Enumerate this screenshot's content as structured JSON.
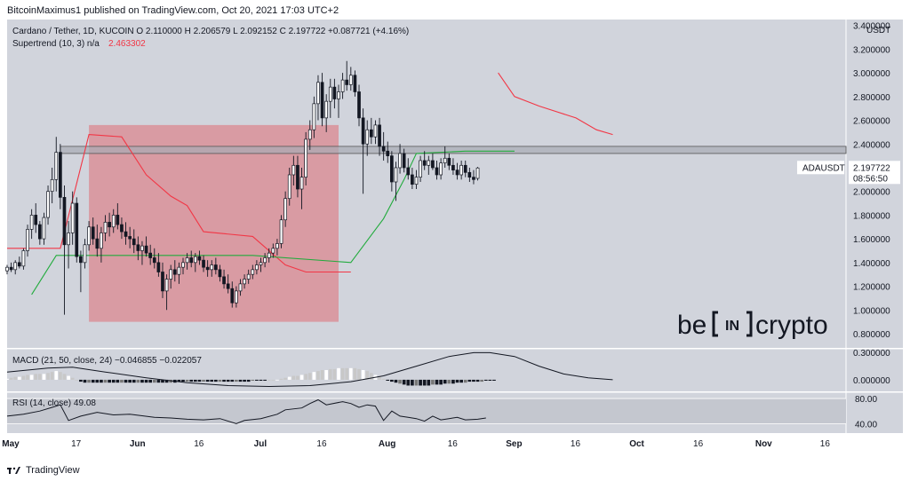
{
  "header": "BitcoinMaximus1 published on TradingView.com, Oct 20, 2021 17:03 UTC+2",
  "footer": {
    "brand": "TradingView"
  },
  "watermark": {
    "brand": "be[IN]crypto",
    "part_be": "be",
    "part_in": "IN",
    "part_crypto": "crypto"
  },
  "colors": {
    "panel_bg": "#d1d4dc",
    "bull": "#ffffff",
    "bear": "#131722",
    "supertrend_down": "#f23645",
    "supertrend_up": "#22ab3d",
    "highlight": "#e06b75",
    "resistance": "#a8abb3"
  },
  "chart_data": {
    "type": "candlestick",
    "symbol_line": "Cardano / Tether, 1D, KUCOIN",
    "ohlc": {
      "open": "O 2.110000",
      "high": "H 2.206579",
      "low": "L 2.092152",
      "close": "C 2.197722",
      "change": "+0.087721 (+4.16%)"
    },
    "indicator_line": "Supertrend (10, 3)",
    "indicator_na": "n/a",
    "indicator_value": "2.463302",
    "price_label": "ADAUSDT",
    "last_price": "2.197722",
    "countdown": "08:56:50",
    "y_unit": "USDT",
    "y_ticks": [
      "3.400000",
      "3.200000",
      "3.000000",
      "2.800000",
      "2.600000",
      "2.400000",
      "2.200000",
      "2.000000",
      "1.800000",
      "1.600000",
      "1.400000",
      "1.200000",
      "1.000000",
      "0.800000"
    ],
    "y_tick_values": [
      3.4,
      3.2,
      3.0,
      2.8,
      2.6,
      2.4,
      2.2,
      2.0,
      1.8,
      1.6,
      1.4,
      1.2,
      1.0,
      0.8
    ],
    "ylim": [
      0.68,
      3.45
    ],
    "x_ticks": [
      "May",
      "17",
      "Jun",
      "16",
      "Jul",
      "16",
      "Aug",
      "16",
      "Sep",
      "16",
      "Oct",
      "16",
      "Nov",
      "16"
    ],
    "x_tick_days": [
      0,
      16,
      31,
      46,
      61,
      76,
      92,
      108,
      123,
      138,
      153,
      168,
      184,
      199
    ],
    "xlim": [
      0,
      205
    ],
    "candles": {
      "start_day": 0,
      "ohlc": [
        [
          1.33,
          1.38,
          1.3,
          1.36
        ],
        [
          1.36,
          1.4,
          1.32,
          1.34
        ],
        [
          1.34,
          1.42,
          1.3,
          1.4
        ],
        [
          1.4,
          1.45,
          1.35,
          1.37
        ],
        [
          1.37,
          1.52,
          1.34,
          1.5
        ],
        [
          1.5,
          1.72,
          1.45,
          1.68
        ],
        [
          1.68,
          1.85,
          1.6,
          1.8
        ],
        [
          1.8,
          1.9,
          1.65,
          1.72
        ],
        [
          1.72,
          1.75,
          1.55,
          1.6
        ],
        [
          1.6,
          1.82,
          1.55,
          1.78
        ],
        [
          1.78,
          2.05,
          1.72,
          2.0
        ],
        [
          2.0,
          2.2,
          1.9,
          2.1
        ],
        [
          2.1,
          2.46,
          2.0,
          2.33
        ],
        [
          2.33,
          2.4,
          1.85,
          1.95
        ],
        [
          1.95,
          2.05,
          0.96,
          1.55
        ],
        [
          1.55,
          1.75,
          1.35,
          1.65
        ],
        [
          1.65,
          2.0,
          1.55,
          1.9
        ],
        [
          1.9,
          1.95,
          1.4,
          1.45
        ],
        [
          1.45,
          1.5,
          1.15,
          1.4
        ],
        [
          1.4,
          1.6,
          1.35,
          1.55
        ],
        [
          1.55,
          1.75,
          1.5,
          1.7
        ],
        [
          1.7,
          1.78,
          1.55,
          1.6
        ],
        [
          1.6,
          1.72,
          1.45,
          1.52
        ],
        [
          1.52,
          1.7,
          1.4,
          1.65
        ],
        [
          1.65,
          1.8,
          1.58,
          1.74
        ],
        [
          1.74,
          1.82,
          1.62,
          1.7
        ],
        [
          1.7,
          1.85,
          1.65,
          1.8
        ],
        [
          1.8,
          1.9,
          1.68,
          1.72
        ],
        [
          1.72,
          1.78,
          1.6,
          1.66
        ],
        [
          1.66,
          1.74,
          1.55,
          1.62
        ],
        [
          1.62,
          1.7,
          1.52,
          1.6
        ],
        [
          1.6,
          1.68,
          1.48,
          1.55
        ],
        [
          1.55,
          1.62,
          1.42,
          1.5
        ],
        [
          1.5,
          1.58,
          1.38,
          1.54
        ],
        [
          1.54,
          1.62,
          1.45,
          1.48
        ],
        [
          1.48,
          1.55,
          1.38,
          1.44
        ],
        [
          1.44,
          1.52,
          1.35,
          1.4
        ],
        [
          1.4,
          1.48,
          1.28,
          1.32
        ],
        [
          1.32,
          1.4,
          1.1,
          1.16
        ],
        [
          1.16,
          1.3,
          1.0,
          1.26
        ],
        [
          1.26,
          1.38,
          1.18,
          1.34
        ],
        [
          1.34,
          1.42,
          1.24,
          1.3
        ],
        [
          1.3,
          1.4,
          1.22,
          1.36
        ],
        [
          1.36,
          1.44,
          1.3,
          1.4
        ],
        [
          1.4,
          1.48,
          1.34,
          1.44
        ],
        [
          1.44,
          1.5,
          1.36,
          1.4
        ],
        [
          1.4,
          1.48,
          1.32,
          1.45
        ],
        [
          1.45,
          1.5,
          1.38,
          1.42
        ],
        [
          1.42,
          1.46,
          1.32,
          1.36
        ],
        [
          1.36,
          1.42,
          1.28,
          1.34
        ],
        [
          1.34,
          1.42,
          1.28,
          1.38
        ],
        [
          1.38,
          1.44,
          1.3,
          1.34
        ],
        [
          1.34,
          1.38,
          1.24,
          1.28
        ],
        [
          1.28,
          1.34,
          1.18,
          1.22
        ],
        [
          1.22,
          1.3,
          1.14,
          1.18
        ],
        [
          1.18,
          1.24,
          1.02,
          1.06
        ],
        [
          1.06,
          1.2,
          1.02,
          1.16
        ],
        [
          1.16,
          1.26,
          1.12,
          1.22
        ],
        [
          1.22,
          1.3,
          1.18,
          1.26
        ],
        [
          1.26,
          1.34,
          1.22,
          1.3
        ],
        [
          1.3,
          1.38,
          1.26,
          1.34
        ],
        [
          1.34,
          1.42,
          1.3,
          1.38
        ],
        [
          1.38,
          1.44,
          1.32,
          1.4
        ],
        [
          1.4,
          1.48,
          1.36,
          1.44
        ],
        [
          1.44,
          1.52,
          1.4,
          1.48
        ],
        [
          1.48,
          1.56,
          1.44,
          1.52
        ],
        [
          1.52,
          1.6,
          1.46,
          1.56
        ],
        [
          1.56,
          1.8,
          1.52,
          1.76
        ],
        [
          1.76,
          2.0,
          1.7,
          1.94
        ],
        [
          1.94,
          2.2,
          1.88,
          2.14
        ],
        [
          2.14,
          2.3,
          2.05,
          2.22
        ],
        [
          2.22,
          2.3,
          1.95,
          2.02
        ],
        [
          2.02,
          2.2,
          1.85,
          2.12
        ],
        [
          2.12,
          2.5,
          2.05,
          2.44
        ],
        [
          2.44,
          2.6,
          2.35,
          2.52
        ],
        [
          2.52,
          2.8,
          2.45,
          2.74
        ],
        [
          2.74,
          2.98,
          2.6,
          2.92
        ],
        [
          2.92,
          3.0,
          2.55,
          2.62
        ],
        [
          2.62,
          2.82,
          2.5,
          2.76
        ],
        [
          2.76,
          2.95,
          2.62,
          2.88
        ],
        [
          2.88,
          2.95,
          2.7,
          2.78
        ],
        [
          2.78,
          2.9,
          2.62,
          2.84
        ],
        [
          2.84,
          3.0,
          2.78,
          2.94
        ],
        [
          2.94,
          3.1,
          2.85,
          2.9
        ],
        [
          2.9,
          3.05,
          2.85,
          2.98
        ],
        [
          2.98,
          3.02,
          2.8,
          2.84
        ],
        [
          2.84,
          2.9,
          2.55,
          2.62
        ],
        [
          2.62,
          2.7,
          1.98,
          2.4
        ],
        [
          2.4,
          2.6,
          2.3,
          2.52
        ],
        [
          2.52,
          2.62,
          2.4,
          2.46
        ],
        [
          2.46,
          2.6,
          2.4,
          2.56
        ],
        [
          2.56,
          2.62,
          2.3,
          2.38
        ],
        [
          2.38,
          2.5,
          2.26,
          2.34
        ],
        [
          2.34,
          2.42,
          2.24,
          2.3
        ],
        [
          2.3,
          2.34,
          2.0,
          2.08
        ],
        [
          2.08,
          2.25,
          1.92,
          2.2
        ],
        [
          2.2,
          2.4,
          2.15,
          2.32
        ],
        [
          2.32,
          2.36,
          2.16,
          2.2
        ],
        [
          2.2,
          2.28,
          2.1,
          2.14
        ],
        [
          2.14,
          2.2,
          2.02,
          2.06
        ],
        [
          2.06,
          2.18,
          2.02,
          2.12
        ],
        [
          2.12,
          2.3,
          2.08,
          2.26
        ],
        [
          2.26,
          2.34,
          2.18,
          2.22
        ],
        [
          2.22,
          2.3,
          2.14,
          2.26
        ],
        [
          2.26,
          2.32,
          2.18,
          2.2
        ],
        [
          2.2,
          2.26,
          2.1,
          2.14
        ],
        [
          2.14,
          2.28,
          2.1,
          2.24
        ],
        [
          2.24,
          2.38,
          2.2,
          2.28
        ],
        [
          2.28,
          2.32,
          2.18,
          2.22
        ],
        [
          2.22,
          2.28,
          2.14,
          2.18
        ],
        [
          2.18,
          2.24,
          2.1,
          2.14
        ],
        [
          2.14,
          2.26,
          2.1,
          2.22
        ],
        [
          2.22,
          2.26,
          2.12,
          2.16
        ],
        [
          2.16,
          2.2,
          2.08,
          2.12
        ],
        [
          2.12,
          2.18,
          2.06,
          2.1
        ],
        [
          2.11,
          2.206579,
          2.092152,
          2.197722
        ]
      ]
    },
    "supertrend": {
      "down": [
        [
          0,
          1.52
        ],
        [
          13,
          1.52
        ],
        [
          20,
          2.48
        ],
        [
          28,
          2.46
        ],
        [
          34,
          2.14
        ],
        [
          40,
          1.96
        ],
        [
          44,
          1.88
        ],
        [
          48,
          1.66
        ],
        [
          60,
          1.62
        ],
        [
          68,
          1.38
        ],
        [
          73,
          1.32
        ],
        [
          84,
          1.32
        ]
      ],
      "up": [
        [
          6,
          1.13
        ],
        [
          12,
          1.46
        ],
        [
          60,
          1.46
        ],
        [
          84,
          1.4
        ],
        [
          92,
          1.77
        ],
        [
          97,
          2.1
        ],
        [
          100,
          2.32
        ],
        [
          112,
          2.34
        ],
        [
          124,
          2.34
        ]
      ],
      "down_late": [
        [
          120,
          3.0
        ],
        [
          124,
          2.8
        ],
        [
          130,
          2.72
        ],
        [
          139,
          2.62
        ],
        [
          144,
          2.52
        ],
        [
          148,
          2.48
        ]
      ]
    },
    "highlight_rect": {
      "x0": 20,
      "x1": 81,
      "y0": 0.9,
      "y1": 2.56
    },
    "resistance_zone": {
      "y0": 2.32,
      "y1": 2.38
    },
    "macd": {
      "label": "MACD (21, 50, close, 24)",
      "value1": "−0.046855",
      "value2": "−0.022057",
      "y_ticks": [
        "0.300000",
        "0.000000"
      ],
      "y_tick_values": [
        0.3,
        0.0
      ],
      "ylim": [
        -0.12,
        0.32
      ],
      "macd_line": [
        [
          0,
          0.08
        ],
        [
          10,
          0.12
        ],
        [
          16,
          0.13
        ],
        [
          24,
          0.08
        ],
        [
          34,
          0.02
        ],
        [
          44,
          -0.03
        ],
        [
          54,
          -0.06
        ],
        [
          64,
          -0.07
        ],
        [
          74,
          -0.06
        ],
        [
          84,
          -0.02
        ],
        [
          92,
          0.04
        ],
        [
          100,
          0.14
        ],
        [
          108,
          0.24
        ],
        [
          114,
          0.28
        ],
        [
          118,
          0.28
        ],
        [
          124,
          0.24
        ],
        [
          130,
          0.14
        ],
        [
          136,
          0.06
        ],
        [
          142,
          0.02
        ],
        [
          148,
          0.0
        ]
      ],
      "hist": [
        0.01,
        0.02,
        0.03,
        0.03,
        0.04,
        0.05,
        0.05,
        0.06,
        0.06,
        0.06,
        0.07,
        0.08,
        0.09,
        0.08,
        0.06,
        0.04,
        0.02,
        0.0,
        -0.02,
        -0.03,
        -0.03,
        -0.03,
        -0.03,
        -0.03,
        -0.03,
        -0.03,
        -0.03,
        -0.03,
        -0.03,
        -0.03,
        -0.03,
        -0.03,
        -0.03,
        -0.03,
        -0.03,
        -0.03,
        -0.03,
        -0.03,
        -0.03,
        -0.03,
        -0.03,
        -0.03,
        -0.02,
        -0.02,
        -0.02,
        -0.02,
        -0.02,
        -0.02,
        -0.02,
        -0.02,
        -0.02,
        -0.02,
        -0.02,
        -0.02,
        -0.02,
        -0.02,
        -0.02,
        -0.02,
        -0.02,
        -0.02,
        -0.01,
        -0.01,
        -0.01,
        -0.01,
        0.0,
        0.0,
        0.0,
        0.01,
        0.02,
        0.03,
        0.04,
        0.04,
        0.05,
        0.06,
        0.07,
        0.08,
        0.09,
        0.1,
        0.1,
        0.11,
        0.11,
        0.12,
        0.12,
        0.12,
        0.12,
        0.12,
        0.11,
        0.1,
        0.09,
        0.07,
        0.05,
        0.03,
        0.01,
        -0.01,
        -0.02,
        -0.03,
        -0.04,
        -0.05,
        -0.06,
        -0.06,
        -0.06,
        -0.06,
        -0.06,
        -0.06,
        -0.05,
        -0.05,
        -0.05,
        -0.04,
        -0.04,
        -0.04,
        -0.03,
        -0.03,
        -0.03,
        -0.02,
        -0.02,
        -0.02,
        -0.02,
        -0.01,
        -0.01,
        -0.01
      ]
    },
    "rsi": {
      "label": "RSI (14, close)",
      "value": "49.08",
      "y_ticks": [
        "80.00",
        "40.00"
      ],
      "y_tick_values": [
        80,
        40
      ],
      "ylim": [
        25,
        90
      ],
      "band": [
        40,
        80
      ],
      "line": [
        [
          0,
          52
        ],
        [
          4,
          55
        ],
        [
          8,
          60
        ],
        [
          11,
          66
        ],
        [
          13,
          70
        ],
        [
          15,
          45
        ],
        [
          18,
          52
        ],
        [
          22,
          58
        ],
        [
          26,
          54
        ],
        [
          30,
          55
        ],
        [
          36,
          50
        ],
        [
          40,
          49
        ],
        [
          44,
          47
        ],
        [
          48,
          46
        ],
        [
          52,
          48
        ],
        [
          56,
          40
        ],
        [
          58,
          45
        ],
        [
          62,
          48
        ],
        [
          66,
          55
        ],
        [
          68,
          62
        ],
        [
          72,
          65
        ],
        [
          74,
          72
        ],
        [
          76,
          78
        ],
        [
          78,
          70
        ],
        [
          82,
          75
        ],
        [
          84,
          72
        ],
        [
          86,
          66
        ],
        [
          88,
          70
        ],
        [
          90,
          68
        ],
        [
          92,
          45
        ],
        [
          94,
          60
        ],
        [
          96,
          52
        ],
        [
          98,
          50
        ],
        [
          100,
          48
        ],
        [
          102,
          44
        ],
        [
          104,
          52
        ],
        [
          106,
          46
        ],
        [
          108,
          48
        ],
        [
          110,
          50
        ],
        [
          112,
          46
        ],
        [
          115,
          47
        ],
        [
          117,
          49.08
        ]
      ]
    }
  }
}
